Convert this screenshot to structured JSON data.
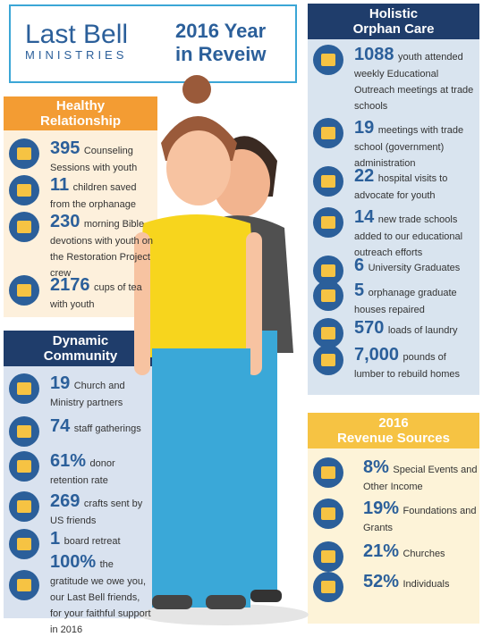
{
  "logo": {
    "line1": "Last Bell",
    "line2": "MINISTRIES",
    "accent": "#f39c33"
  },
  "title": {
    "line1": "2016 Year",
    "line2": "in Reveiw"
  },
  "healthy": {
    "heading1": "Healthy",
    "heading2": "Relationship",
    "items": [
      {
        "num": "395",
        "text": "Counseling Sessions with youth",
        "icon": "chat-icon"
      },
      {
        "num": "11",
        "text": "children saved from the orphanage",
        "icon": "children-icon"
      },
      {
        "num": "230",
        "text": "morning Bible devotions with youth on the Restoration Project crew",
        "icon": "book-icon"
      },
      {
        "num": "2176",
        "text": "cups of tea with youth",
        "icon": "tea-icon"
      }
    ]
  },
  "community": {
    "heading1": "Dynamic",
    "heading2": "Community",
    "items": [
      {
        "num": "19",
        "text": "Church and Ministry partners",
        "icon": "cross-icon"
      },
      {
        "num": "74",
        "text": "staff gatherings",
        "icon": "people-icon"
      },
      {
        "num": "61%",
        "text": "donor retention rate",
        "icon": "lock-icon"
      },
      {
        "num": "269",
        "text": "crafts sent by US friends",
        "icon": "box-icon"
      },
      {
        "num": "1",
        "text": "board retreat",
        "icon": "calendar-icon"
      },
      {
        "num": "100%",
        "text": "the gratitude we owe you, our Last Bell friends, for your faithful support in 2016",
        "icon": "heart-icon"
      }
    ]
  },
  "orphan": {
    "heading1": "Holistic",
    "heading2": "Orphan Care",
    "items": [
      {
        "num": "1088",
        "text": "youth attended weekly Educational Outreach meetings at trade schools",
        "icon": "books-icon"
      },
      {
        "num": "19",
        "text": "meetings with trade school (government) administration",
        "icon": "badge-icon"
      },
      {
        "num": "22",
        "text": "hospital visits to advocate for youth",
        "icon": "medkit-icon"
      },
      {
        "num": "14",
        "text": "new trade schools added to our educational outreach efforts",
        "icon": "diploma-icon"
      },
      {
        "num": "6",
        "text": "University Graduates",
        "icon": "tools-icon"
      },
      {
        "num": "5",
        "text": "orphanage graduate houses repaired",
        "icon": "house-repair-icon"
      },
      {
        "num": "570",
        "text": "loads of laundry",
        "icon": "laundry-icon"
      },
      {
        "num": "7,000",
        "text": "pounds of lumber to rebuild homes",
        "icon": "home-icon"
      }
    ]
  },
  "revenue": {
    "heading1": "2016",
    "heading2": "Revenue Sources",
    "items": [
      {
        "num": "8%",
        "text": "Special Events and Other Income",
        "icon": "calendar-icon"
      },
      {
        "num": "19%",
        "text": "Foundations and Grants",
        "icon": "piggy-bank-icon"
      },
      {
        "num": "21%",
        "text": "Churches",
        "icon": "cross-icon"
      },
      {
        "num": "52%",
        "text": "Individuals",
        "icon": "thumbs-up-icon"
      }
    ]
  },
  "colors": {
    "blue": "#2b5f9a",
    "navy": "#1f3d6b",
    "orange": "#f39c33",
    "yellow": "#f6c343",
    "healthy_bg": "#fdf0dc",
    "community_bg": "#d9e2ef",
    "orphan_bg": "#d9e4ef",
    "revenue_bg": "#fdf3d8"
  }
}
